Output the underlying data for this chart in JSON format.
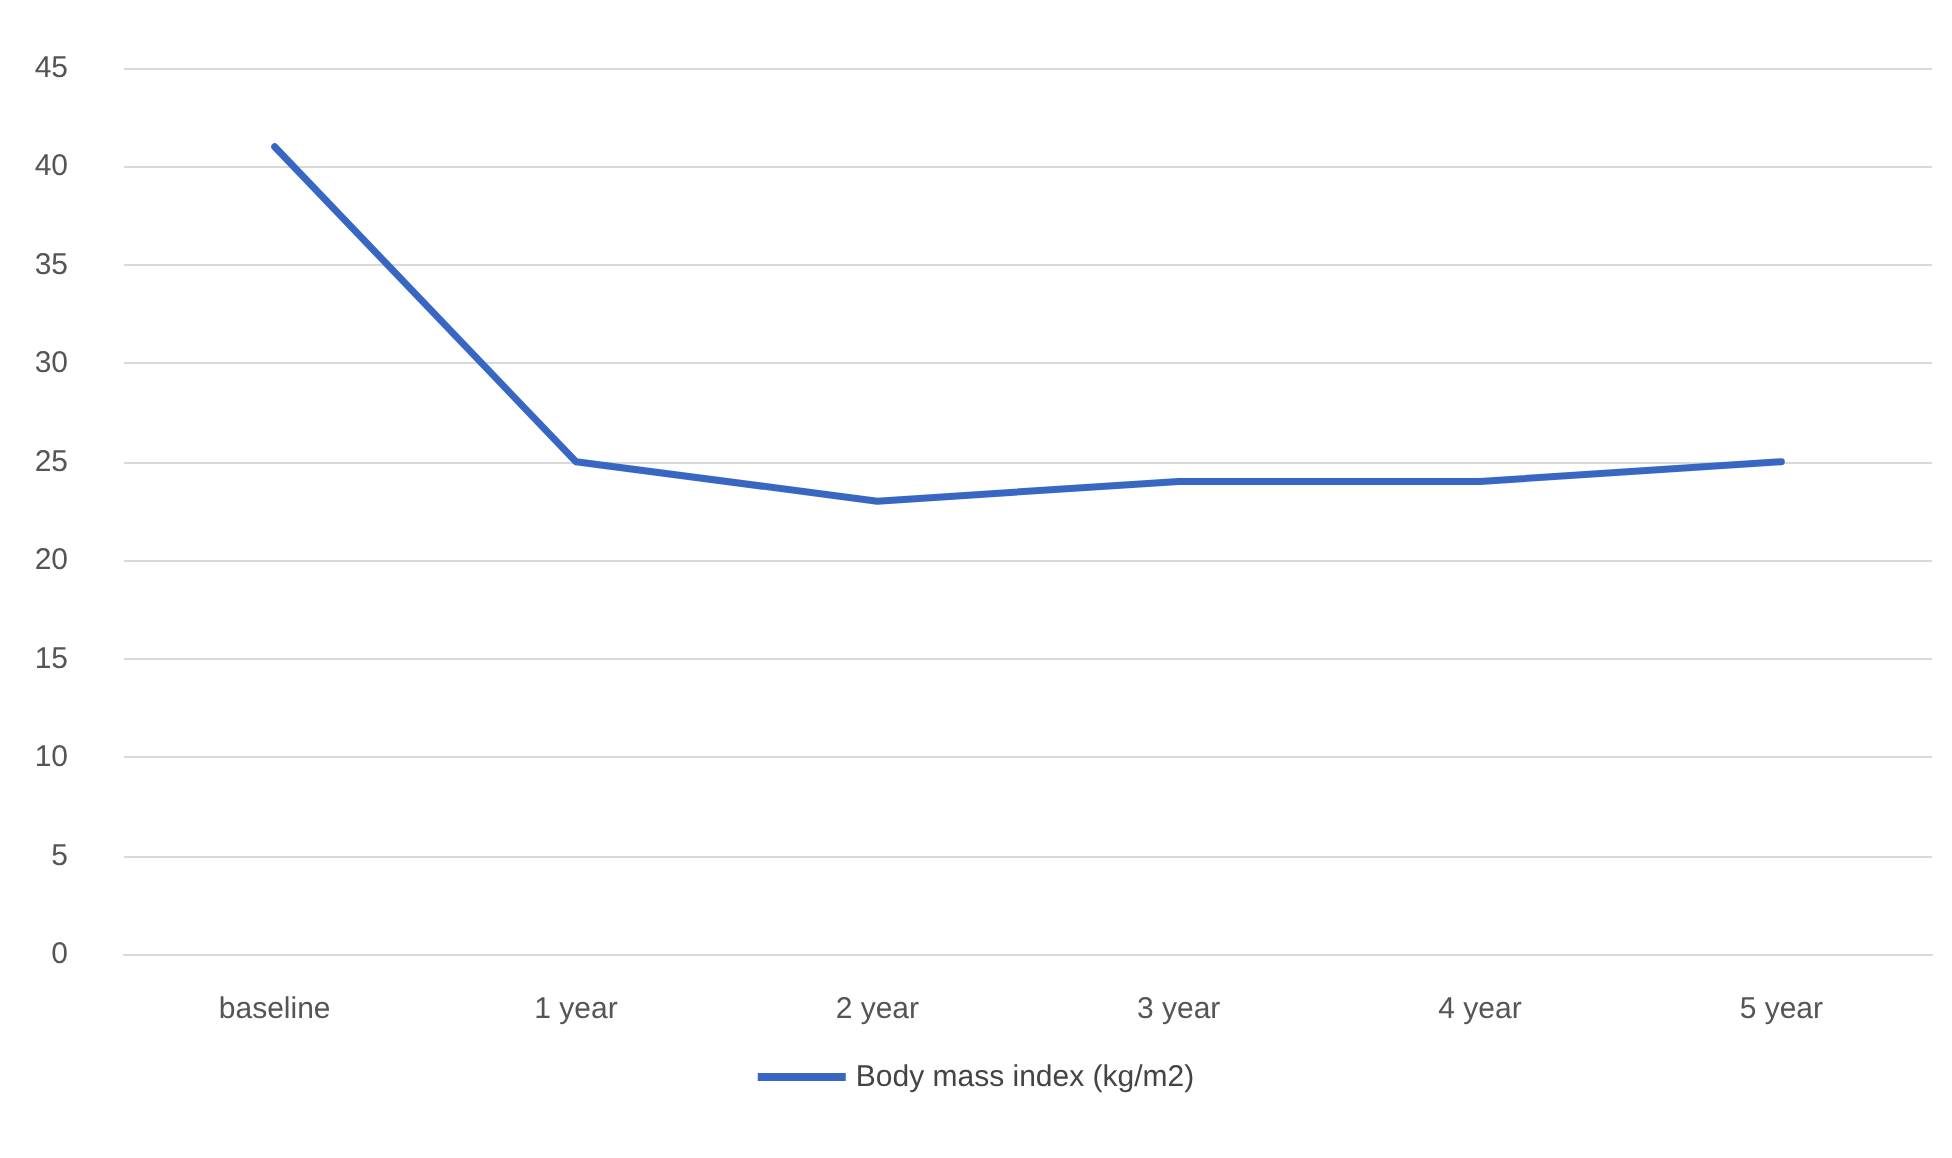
{
  "chart_data": {
    "type": "line",
    "categories": [
      "baseline",
      "1 year",
      "2 year",
      "3 year",
      "4 year",
      "5 year"
    ],
    "series": [
      {
        "name": "Body mass index (kg/m2)",
        "color": "#3767c3",
        "values": [
          41,
          25,
          23,
          24,
          24,
          25
        ]
      }
    ],
    "ylim": [
      0,
      45
    ],
    "yticks": [
      0,
      5,
      10,
      15,
      20,
      25,
      30,
      35,
      40,
      45
    ],
    "grid": "y",
    "legend": "bottom",
    "marker": "none",
    "line_style": "solid"
  }
}
